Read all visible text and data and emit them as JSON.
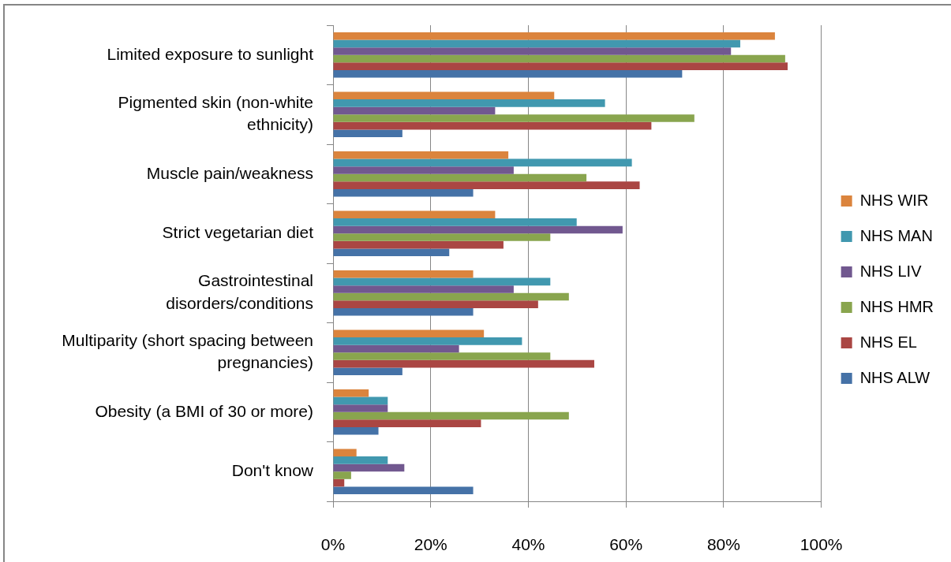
{
  "chart_data": {
    "type": "bar",
    "orientation": "horizontal",
    "categories": [
      "Limited exposure to sunlight",
      "Pigmented skin (non-white ethnicity)",
      "Muscle pain/weakness",
      "Strict vegetarian diet",
      "Gastrointestinal disorders/conditions",
      "Multiparity (short spacing between pregnancies)",
      "Obesity (a BMI of 30 or more)",
      "Don't know"
    ],
    "series": [
      {
        "name": "NHS WIR",
        "color": "#db843d",
        "values": [
          90.5,
          45.3,
          35.9,
          33.2,
          28.7,
          30.9,
          7.3,
          4.8
        ]
      },
      {
        "name": "NHS MAN",
        "color": "#4198af",
        "values": [
          83.4,
          55.7,
          61.2,
          49.9,
          44.5,
          38.7,
          11.2,
          11.2
        ]
      },
      {
        "name": "NHS LIV",
        "color": "#71588f",
        "values": [
          81.5,
          33.2,
          37.0,
          59.3,
          37.0,
          25.8,
          11.2,
          14.6
        ]
      },
      {
        "name": "NHS HMR",
        "color": "#89a54e",
        "values": [
          92.6,
          74.0,
          51.9,
          44.5,
          48.3,
          44.5,
          48.3,
          3.7
        ]
      },
      {
        "name": "NHS EL",
        "color": "#aa4643",
        "values": [
          93.1,
          65.2,
          62.8,
          34.9,
          42.0,
          53.5,
          30.3,
          2.3
        ]
      },
      {
        "name": "NHS ALW",
        "color": "#4572a7",
        "values": [
          71.5,
          14.2,
          28.7,
          23.8,
          28.7,
          14.2,
          9.3,
          28.7
        ]
      }
    ],
    "xlim": [
      0,
      100
    ],
    "xticks": [
      {
        "value": 0,
        "label": "0%"
      },
      {
        "value": 20,
        "label": "20%"
      },
      {
        "value": 40,
        "label": "40%"
      },
      {
        "value": 60,
        "label": "60%"
      },
      {
        "value": 80,
        "label": "80%"
      },
      {
        "value": 100,
        "label": "100%"
      }
    ],
    "grid": "x",
    "legend": "right"
  }
}
